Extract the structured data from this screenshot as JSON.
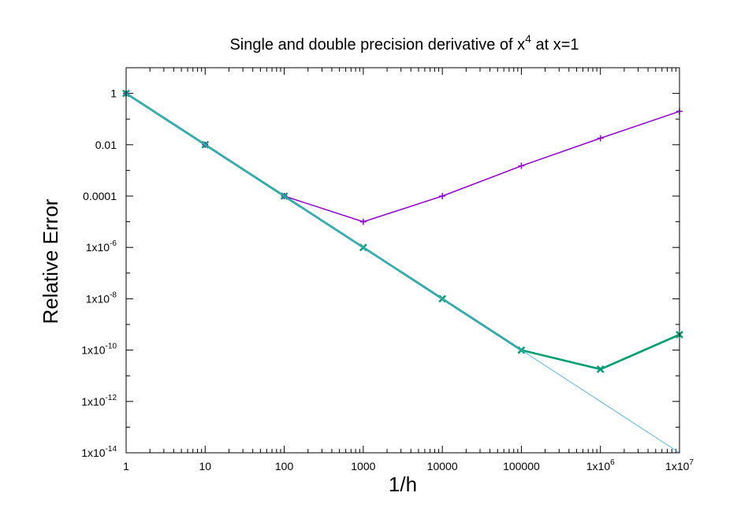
{
  "chart_data": {
    "type": "line",
    "title": {
      "prefix": "Single and double precision derivative of x",
      "sup": "4",
      "suffix": " at x=1"
    },
    "xlabel": "1/h",
    "ylabel": "Relative Error",
    "xscale": "log",
    "yscale": "log",
    "xlim": [
      1,
      10000000
    ],
    "ylim": [
      1e-14,
      10
    ],
    "grid": false,
    "x_ticks": [
      {
        "value": 1,
        "label": "1"
      },
      {
        "value": 10,
        "label": "10"
      },
      {
        "value": 100,
        "label": "100"
      },
      {
        "value": 1000,
        "label": "1000"
      },
      {
        "value": 10000,
        "label": "10000"
      },
      {
        "value": 100000,
        "label": "100000"
      },
      {
        "value": 1000000,
        "label": "1x10",
        "sup": "6"
      },
      {
        "value": 10000000,
        "label": "1x10",
        "sup": "7"
      }
    ],
    "y_ticks": [
      {
        "value": 1,
        "label": "1"
      },
      {
        "value": 0.01,
        "label": "0.01"
      },
      {
        "value": 0.0001,
        "label": "0.0001"
      },
      {
        "value": 1e-06,
        "label": "1x10",
        "sup": "-6"
      },
      {
        "value": 1e-08,
        "label": "1x10",
        "sup": "-8"
      },
      {
        "value": 1e-10,
        "label": "1x10",
        "sup": "-10"
      },
      {
        "value": 1e-12,
        "label": "1x10",
        "sup": "-12"
      },
      {
        "value": 1e-14,
        "label": "1x10",
        "sup": "-14"
      }
    ],
    "series": [
      {
        "color": "#9400d3",
        "marker": "plus",
        "x": [
          1,
          10,
          100,
          1000,
          10000,
          100000,
          1000000,
          10000000
        ],
        "y": [
          1,
          0.01,
          0.0001,
          1e-05,
          0.0001,
          0.0015,
          0.018,
          0.2
        ]
      },
      {
        "color": "#009e73",
        "marker": "cross",
        "x": [
          1,
          10,
          100,
          1000,
          10000,
          100000,
          1000000,
          10000000
        ],
        "y": [
          1,
          0.01,
          0.0001,
          1e-06,
          1e-08,
          1e-10,
          1.8e-11,
          4e-10
        ]
      },
      {
        "color": "#56b4e9",
        "marker": "none",
        "x": [
          1,
          10000000
        ],
        "y": [
          1,
          1e-14
        ]
      }
    ]
  }
}
